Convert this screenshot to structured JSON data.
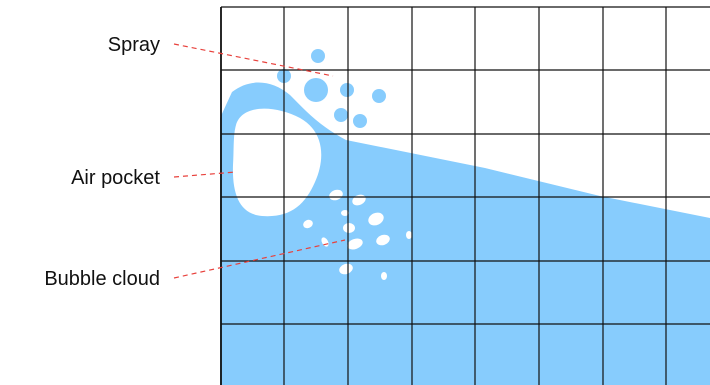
{
  "labels": {
    "spray": "Spray",
    "air_pocket": "Air pocket",
    "bubble_cloud": "Bubble cloud"
  },
  "colors": {
    "water": "#87ccfd",
    "grid": "#111111",
    "leader": "#e8413c",
    "air": "#ffffff"
  }
}
